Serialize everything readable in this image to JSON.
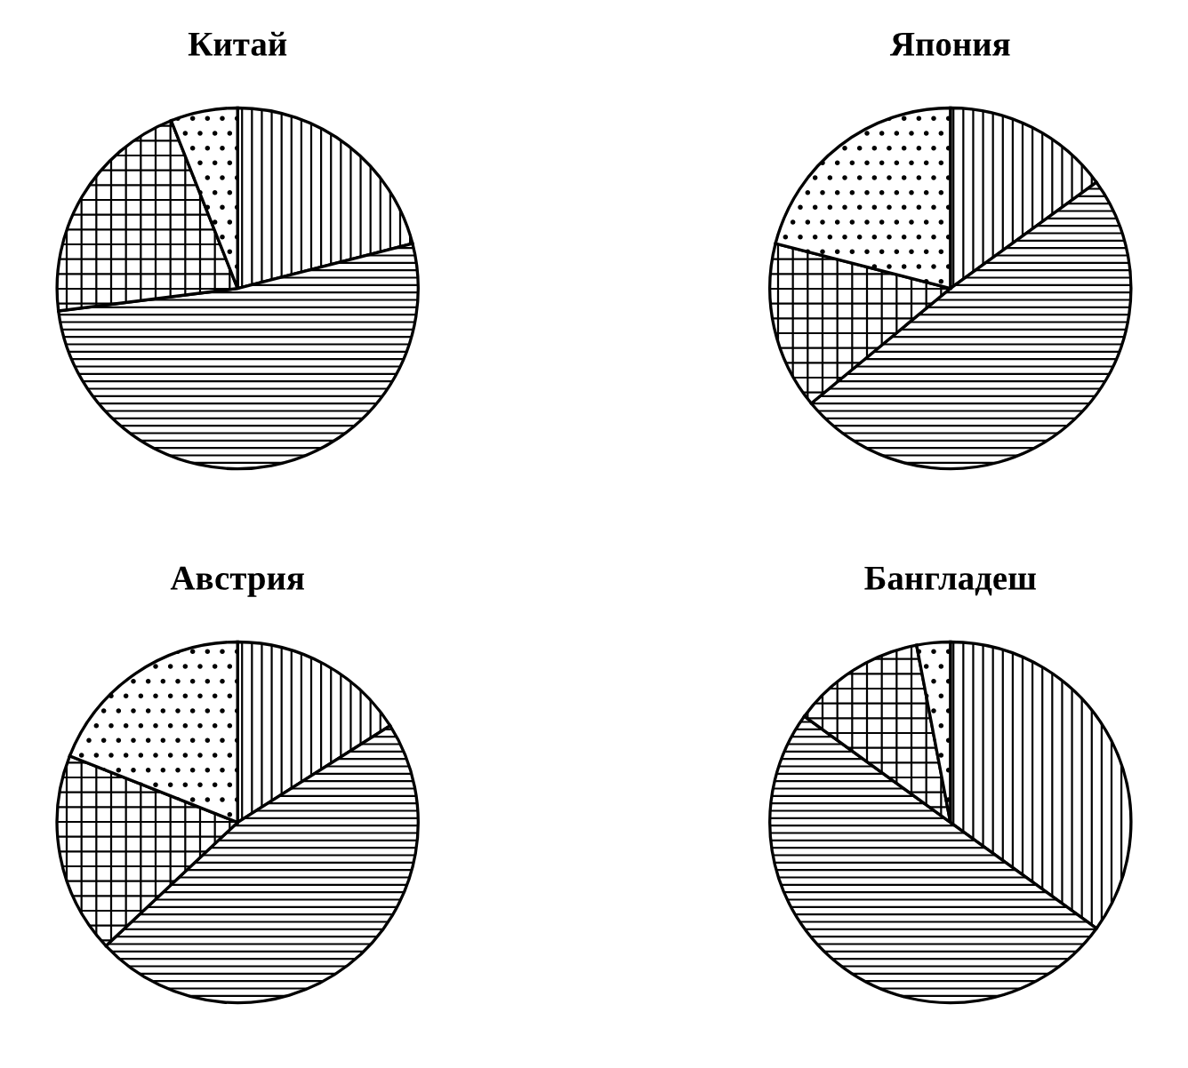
{
  "chart_data": [
    {
      "type": "pie",
      "title": "Китай",
      "categories": [
        null,
        null,
        null,
        null
      ],
      "values": [
        21,
        52,
        21,
        6
      ]
    },
    {
      "type": "pie",
      "title": "Япония",
      "categories": [
        null,
        null,
        null,
        null
      ],
      "values": [
        15,
        49,
        15,
        21
      ]
    },
    {
      "type": "pie",
      "title": "Австрия",
      "categories": [
        null,
        null,
        null,
        null
      ],
      "values": [
        16,
        47,
        18,
        19
      ]
    },
    {
      "type": "pie",
      "title": "Бангладеш",
      "categories": [
        null,
        null,
        null,
        null
      ],
      "values": [
        35,
        50,
        12,
        3
      ]
    }
  ]
}
